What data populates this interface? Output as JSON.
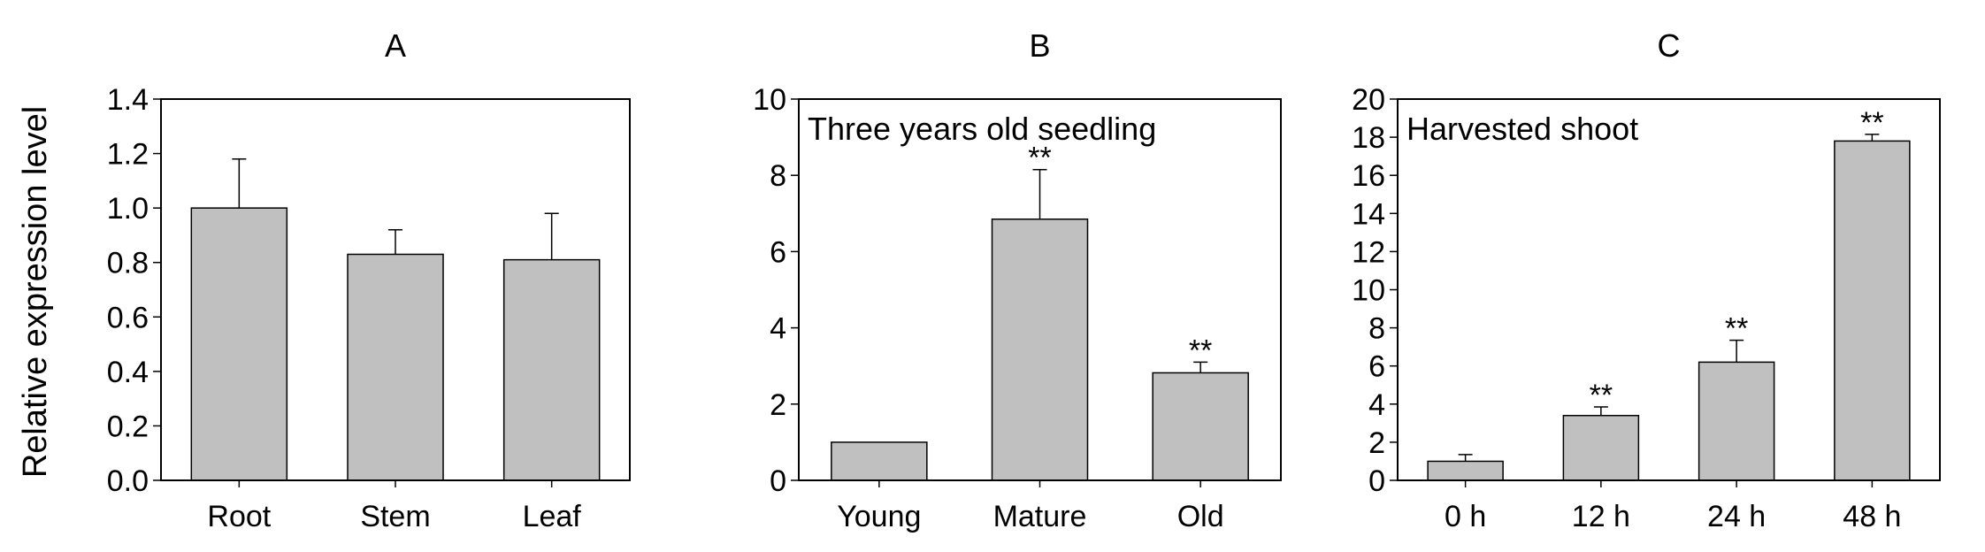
{
  "figure": {
    "ylabel": "Relative expression level"
  },
  "chart_data": [
    {
      "type": "bar",
      "panel_label": "A",
      "title": "",
      "ylabel": "Relative expression level",
      "categories": [
        "Root",
        "Stem",
        "Leaf"
      ],
      "values": [
        1.0,
        0.83,
        0.81
      ],
      "errors": [
        0.18,
        0.09,
        0.17
      ],
      "significance": [
        "",
        "",
        ""
      ],
      "ylim": [
        0,
        1.4
      ],
      "yticks": [
        0.0,
        0.2,
        0.4,
        0.6,
        0.8,
        1.0,
        1.2,
        1.4
      ],
      "ytick_labels": [
        "0.0",
        "0.2",
        "0.4",
        "0.6",
        "0.8",
        "1.0",
        "1.2",
        "1.4"
      ],
      "annotation": "",
      "bar_color": "#c0c0c0",
      "grid": false
    },
    {
      "type": "bar",
      "panel_label": "B",
      "title": "",
      "categories": [
        "Young",
        "Mature",
        "Old"
      ],
      "values": [
        1.0,
        6.85,
        2.82
      ],
      "errors": [
        0.0,
        1.3,
        0.28
      ],
      "significance": [
        "",
        "**",
        "**"
      ],
      "ylim": [
        0,
        10
      ],
      "yticks": [
        0,
        2,
        4,
        6,
        8,
        10
      ],
      "ytick_labels": [
        "0",
        "2",
        "4",
        "6",
        "8",
        "10"
      ],
      "annotation": "Three years old seedling",
      "bar_color": "#c0c0c0",
      "grid": false
    },
    {
      "type": "bar",
      "panel_label": "C",
      "title": "",
      "categories": [
        "0 h",
        "12 h",
        "24 h",
        "48 h"
      ],
      "values": [
        1.0,
        3.4,
        6.2,
        17.8
      ],
      "errors": [
        0.35,
        0.45,
        1.15,
        0.35
      ],
      "significance": [
        "",
        "**",
        "**",
        "**"
      ],
      "ylim": [
        0,
        20
      ],
      "yticks": [
        0,
        2,
        4,
        6,
        8,
        10,
        12,
        14,
        16,
        18,
        20
      ],
      "ytick_labels": [
        "0",
        "2",
        "4",
        "6",
        "8",
        "10",
        "12",
        "14",
        "16",
        "18",
        "20"
      ],
      "annotation": "Harvested shoot",
      "bar_color": "#c0c0c0",
      "grid": false
    }
  ]
}
